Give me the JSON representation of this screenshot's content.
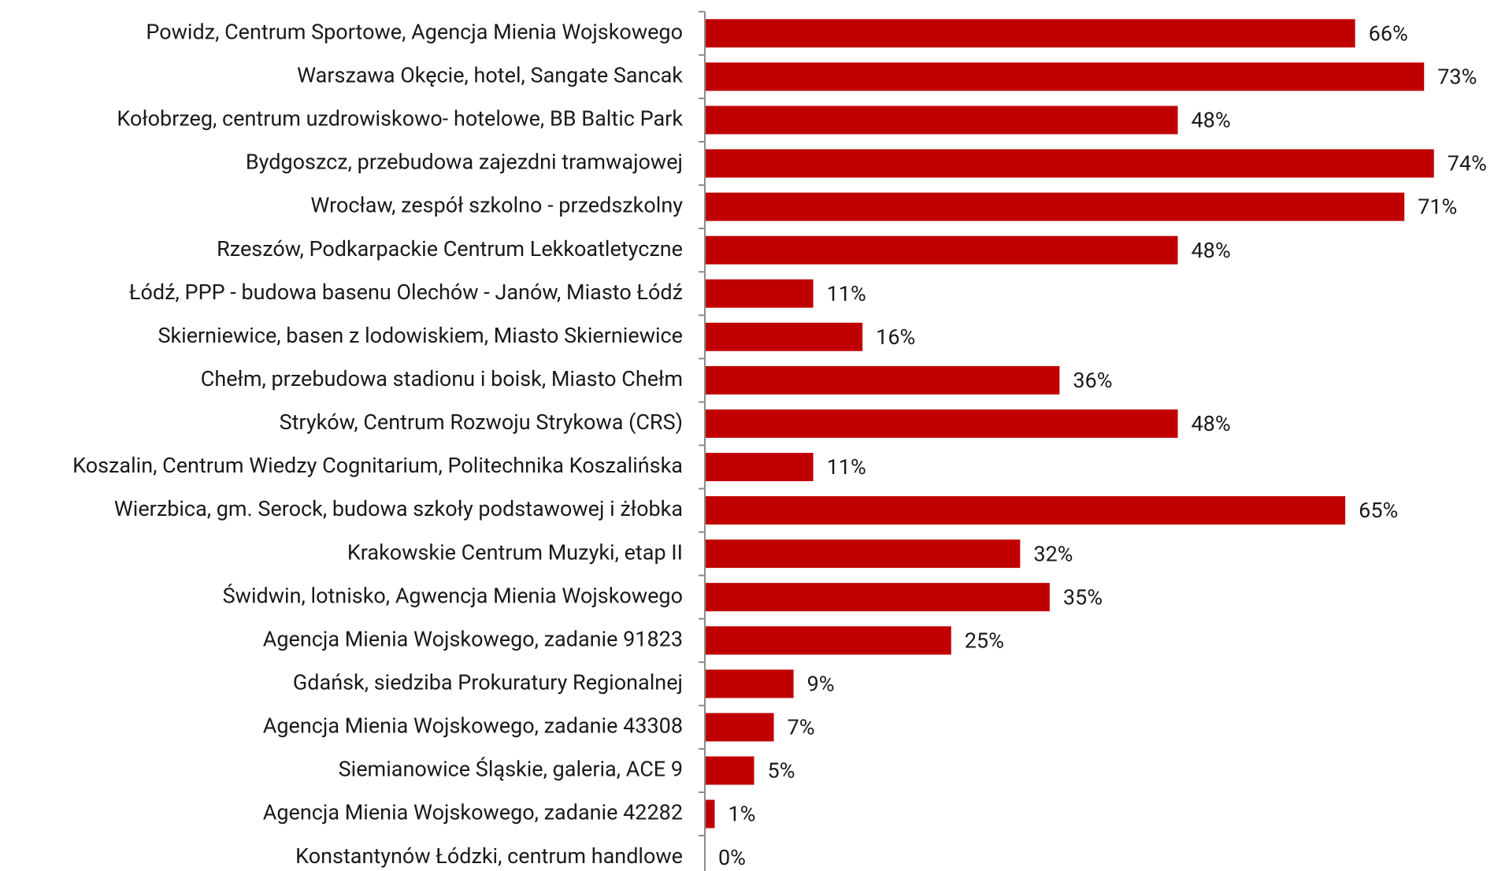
{
  "chart_data": {
    "type": "bar",
    "orientation": "horizontal",
    "color": "#c00000",
    "categories": [
      "Powidz, Centrum Sportowe, Agencja Mienia Wojskowego",
      "Warszawa Okęcie, hotel,  Sangate Sancak",
      "Kołobrzeg, centrum uzdrowiskowo- hotelowe, BB Baltic Park",
      "Bydgoszcz, przebudowa zajezdni tramwajowej",
      "Wrocław, zespół szkolno - przedszkolny",
      "Rzeszów, Podkarpackie Centrum Lekkoatletyczne",
      "Łódź, PPP - budowa basenu Olechów - Janów, Miasto Łódź",
      "Skierniewice, basen z lodowiskiem, Miasto Skierniewice",
      "Chełm, przebudowa stadionu i boisk, Miasto Chełm",
      "Stryków, Centrum Rozwoju Strykowa (CRS)",
      "Koszalin, Centrum Wiedzy Cognitarium, Politechnika Koszalińska",
      "Wierzbica, gm. Serock, budowa szkoły podstawowej i żłobka",
      "Krakowskie Centrum Muzyki, etap II",
      "Świdwin, lotnisko, Agwencja Mienia Wojskowego",
      "Agencja Mienia Wojskowego, zadanie 91823",
      "Gdańsk, siedziba Prokuratury Regionalnej",
      "Agencja Mienia Wojskowego, zadanie 43308",
      "Siemianowice Śląskie, galeria, ACE 9",
      "Agencja Mienia Wojskowego, zadanie 42282",
      "Konstantynów Łódzki, centrum handlowe"
    ],
    "values": [
      66,
      73,
      48,
      74,
      71,
      48,
      11,
      16,
      36,
      48,
      11,
      65,
      32,
      35,
      25,
      9,
      7,
      5,
      1,
      0
    ],
    "value_labels": [
      "66%",
      "73%",
      "48%",
      "74%",
      "71%",
      "48%",
      "11%",
      "16%",
      "36%",
      "48%",
      "11%",
      "65%",
      "32%",
      "35%",
      "25%",
      "9%",
      "7%",
      "5%",
      "1%",
      "0%"
    ]
  }
}
